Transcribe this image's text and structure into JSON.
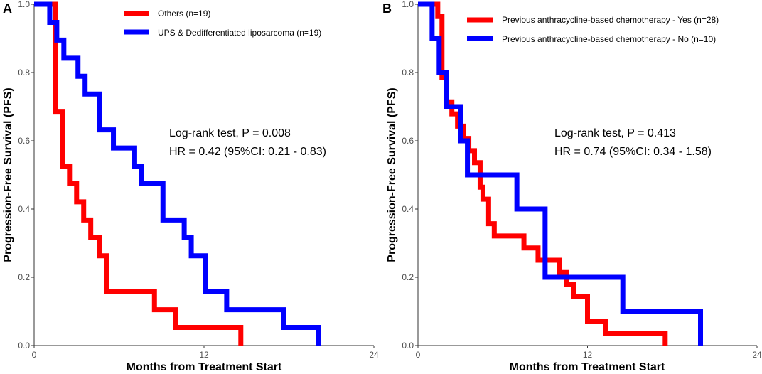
{
  "chart_data": [
    {
      "type": "line",
      "panel_label": "A",
      "xlabel": "Months from Treatment Start",
      "ylabel": "Progression-Free Survival (PFS)",
      "xlim": [
        0,
        24
      ],
      "ylim": [
        0,
        1
      ],
      "x_ticks": [
        "0",
        "12",
        "24"
      ],
      "y_ticks": [
        "0.0",
        "0.2",
        "0.4",
        "0.6",
        "0.8",
        "1.0"
      ],
      "legend_position": "top-right",
      "annotations": [
        "Log-rank test, P = 0.008",
        "HR = 0.42 (95%CI: 0.21 - 0.83)"
      ],
      "series": [
        {
          "name": "Others (n=19)",
          "color": "#ff0000",
          "steps": [
            [
              0,
              1.0
            ],
            [
              1.5,
              0.684
            ],
            [
              2.0,
              0.526
            ],
            [
              2.5,
              0.474
            ],
            [
              3.0,
              0.421
            ],
            [
              3.5,
              0.368
            ],
            [
              4.0,
              0.316
            ],
            [
              4.6,
              0.263
            ],
            [
              5.1,
              0.158
            ],
            [
              8.5,
              0.105
            ],
            [
              10.0,
              0.053
            ],
            [
              14.6,
              0.0
            ]
          ]
        },
        {
          "name": "UPS & Dedifferentiated liposarcoma (n=19)",
          "color": "#0000ff",
          "steps": [
            [
              0,
              1.0
            ],
            [
              1.1,
              0.947
            ],
            [
              1.6,
              0.895
            ],
            [
              2.1,
              0.842
            ],
            [
              3.1,
              0.789
            ],
            [
              3.6,
              0.737
            ],
            [
              4.6,
              0.632
            ],
            [
              5.6,
              0.579
            ],
            [
              7.1,
              0.526
            ],
            [
              7.6,
              0.474
            ],
            [
              9.1,
              0.368
            ],
            [
              10.6,
              0.316
            ],
            [
              11.1,
              0.263
            ],
            [
              12.1,
              0.158
            ],
            [
              13.6,
              0.105
            ],
            [
              17.6,
              0.053
            ],
            [
              20.1,
              0.0
            ]
          ]
        }
      ]
    },
    {
      "type": "line",
      "panel_label": "B",
      "xlabel": "Months from Treatment Start",
      "ylabel": "Progression-Free Survival (PFS)",
      "xlim": [
        0,
        24
      ],
      "ylim": [
        0,
        1
      ],
      "x_ticks": [
        "0",
        "12",
        "24"
      ],
      "y_ticks": [
        "0.0",
        "0.2",
        "0.4",
        "0.6",
        "0.8",
        "1.0"
      ],
      "legend_position": "top-right",
      "annotations": [
        "Log-rank test, P = 0.413",
        "HR = 0.74 (95%CI: 0.34 - 1.58)"
      ],
      "series": [
        {
          "name": "Previous anthracycline-based chemotherapy - Yes (n=28)",
          "color": "#ff0000",
          "steps": [
            [
              0,
              1.0
            ],
            [
              1.4,
              0.964
            ],
            [
              1.7,
              0.786
            ],
            [
              2.0,
              0.714
            ],
            [
              2.4,
              0.679
            ],
            [
              2.8,
              0.643
            ],
            [
              3.2,
              0.607
            ],
            [
              3.6,
              0.571
            ],
            [
              4.0,
              0.536
            ],
            [
              4.4,
              0.464
            ],
            [
              4.6,
              0.429
            ],
            [
              5.0,
              0.357
            ],
            [
              5.4,
              0.321
            ],
            [
              7.5,
              0.286
            ],
            [
              8.5,
              0.25
            ],
            [
              10.0,
              0.214
            ],
            [
              10.5,
              0.179
            ],
            [
              11.0,
              0.143
            ],
            [
              12.0,
              0.071
            ],
            [
              13.3,
              0.036
            ],
            [
              17.5,
              0.0
            ]
          ]
        },
        {
          "name": "Previous anthracycline-based chemotherapy - No (n=10)",
          "color": "#0000ff",
          "steps": [
            [
              0,
              1.0
            ],
            [
              1.0,
              0.9
            ],
            [
              1.5,
              0.8
            ],
            [
              2.0,
              0.7
            ],
            [
              3.0,
              0.6
            ],
            [
              3.5,
              0.5
            ],
            [
              7.0,
              0.4
            ],
            [
              9.0,
              0.2
            ],
            [
              14.5,
              0.1
            ],
            [
              20.0,
              0.0
            ]
          ]
        }
      ]
    }
  ]
}
